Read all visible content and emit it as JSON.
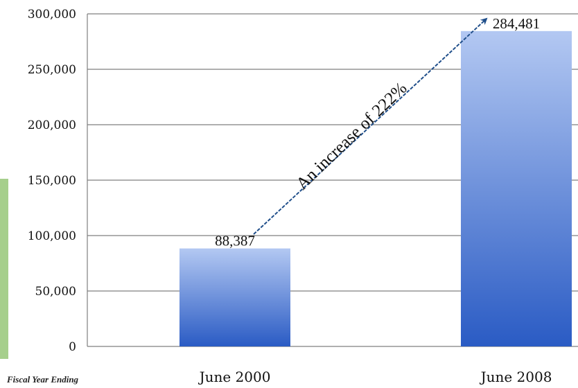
{
  "chart_data": {
    "type": "bar",
    "categories": [
      "June 2000",
      "June 2008"
    ],
    "values": [
      88387,
      284481
    ],
    "value_labels": [
      "88,387",
      "284,481"
    ],
    "ylim": [
      0,
      300000
    ],
    "yticks": [
      0,
      50000,
      100000,
      150000,
      200000,
      250000,
      300000
    ],
    "ytick_labels": [
      "0",
      "50,000",
      "100,000",
      "150,000",
      "200,000",
      "250,000",
      "300,000"
    ],
    "grid": true,
    "annotation": "An increase of 222%",
    "footnote": "Fiscal Year Ending",
    "colors": {
      "bar_top": "#b3c8f2",
      "bar_bottom": "#2a5bc4",
      "arrow": "#1f4e8a",
      "grid": "#7f7f7f",
      "left_strip": "#a6cf8c"
    }
  }
}
